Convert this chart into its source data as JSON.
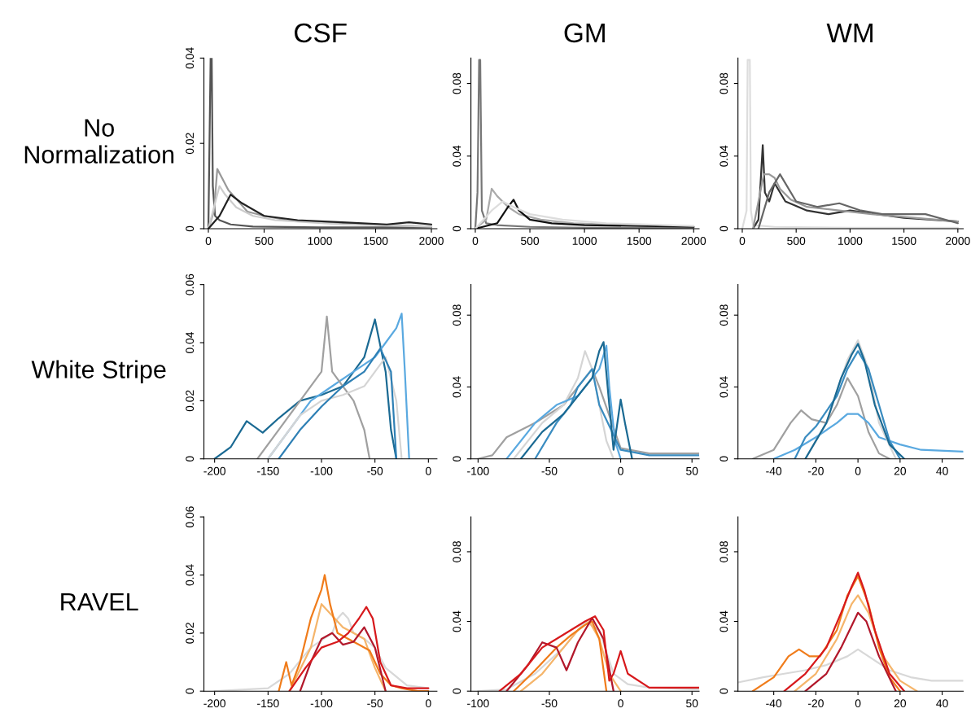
{
  "chart_data": [
    {
      "type": "line",
      "title": "CSF",
      "ylabel": "No\nNormalization",
      "xlim": [
        -40,
        2050
      ],
      "xticks": [
        0,
        500,
        1000,
        1500,
        2000
      ],
      "ylim": [
        0,
        0.04
      ],
      "yticks": [
        0,
        0.02,
        0.04
      ],
      "series": [
        {
          "color": "#555555",
          "x": [
            0,
            10,
            20,
            30,
            40,
            60,
            100,
            200,
            400,
            1000,
            2000
          ],
          "values": [
            0,
            0.02,
            0.04,
            0.04,
            0.01,
            0.003,
            0.002,
            0.001,
            0.0005,
            0.0003,
            0.0003
          ]
        },
        {
          "color": "#999999",
          "x": [
            0,
            50,
            80,
            120,
            180,
            250,
            350,
            500,
            700,
            1000,
            1500,
            2000
          ],
          "values": [
            0,
            0.004,
            0.014,
            0.012,
            0.009,
            0.007,
            0.004,
            0.003,
            0.002,
            0.0015,
            0.001,
            0.0005
          ]
        },
        {
          "color": "#cccccc",
          "x": [
            0,
            60,
            100,
            150,
            250,
            400,
            600,
            900,
            1200,
            2000
          ],
          "values": [
            0,
            0.006,
            0.01,
            0.008,
            0.005,
            0.003,
            0.002,
            0.0015,
            0.001,
            0.0005
          ]
        },
        {
          "color": "#222222",
          "x": [
            0,
            100,
            200,
            300,
            500,
            800,
            1200,
            1600,
            1800,
            2000
          ],
          "values": [
            0,
            0.003,
            0.008,
            0.006,
            0.003,
            0.002,
            0.0015,
            0.001,
            0.0015,
            0.001
          ]
        }
      ]
    },
    {
      "type": "line",
      "title": "GM",
      "xlim": [
        -40,
        2050
      ],
      "xticks": [
        0,
        500,
        1000,
        1500,
        2000
      ],
      "ylim": [
        0,
        0.094
      ],
      "yticks": [
        0,
        0.04,
        0.08
      ],
      "series": [
        {
          "color": "#777777",
          "x": [
            0,
            20,
            35,
            45,
            60,
            100,
            200,
            500,
            1000,
            2000
          ],
          "values": [
            0,
            0.02,
            0.093,
            0.093,
            0.01,
            0.003,
            0.002,
            0.001,
            0.0005,
            0.0005
          ]
        },
        {
          "color": "#aaaaaa",
          "x": [
            0,
            100,
            150,
            200,
            300,
            400,
            600,
            900,
            1400,
            2000
          ],
          "values": [
            0,
            0.005,
            0.022,
            0.018,
            0.012,
            0.008,
            0.005,
            0.003,
            0.002,
            0.001
          ]
        },
        {
          "color": "#111111",
          "x": [
            0,
            200,
            300,
            350,
            400,
            500,
            700,
            1000,
            2000
          ],
          "values": [
            0,
            0.003,
            0.012,
            0.016,
            0.01,
            0.005,
            0.003,
            0.002,
            0.001
          ]
        },
        {
          "color": "#dddddd",
          "x": [
            0,
            150,
            250,
            350,
            500,
            800,
            1200,
            2000
          ],
          "values": [
            0,
            0.01,
            0.015,
            0.012,
            0.008,
            0.005,
            0.003,
            0.0015
          ]
        }
      ]
    },
    {
      "type": "line",
      "title": "WM",
      "xlim": [
        -40,
        2050
      ],
      "xticks": [
        0,
        500,
        1000,
        1500,
        2000
      ],
      "ylim": [
        0,
        0.094
      ],
      "yticks": [
        0,
        0.04,
        0.08
      ],
      "series": [
        {
          "color": "#dddddd",
          "x": [
            0,
            40,
            50,
            70,
            80,
            100,
            300,
            1000,
            2000
          ],
          "values": [
            0,
            0.01,
            0.093,
            0.093,
            0.01,
            0.002,
            0.001,
            0.0005,
            0.0005
          ]
        },
        {
          "color": "#333333",
          "x": [
            100,
            150,
            190,
            210,
            250,
            300,
            400,
            600,
            800,
            1000,
            1500,
            2000
          ],
          "values": [
            0,
            0.005,
            0.046,
            0.02,
            0.015,
            0.025,
            0.015,
            0.01,
            0.008,
            0.01,
            0.006,
            0.004
          ]
        },
        {
          "color": "#999999",
          "x": [
            100,
            200,
            250,
            300,
            350,
            450,
            600,
            900,
            1200,
            1600,
            2000
          ],
          "values": [
            0,
            0.03,
            0.03,
            0.028,
            0.022,
            0.016,
            0.012,
            0.01,
            0.008,
            0.006,
            0.004
          ]
        },
        {
          "color": "#666666",
          "x": [
            150,
            250,
            350,
            500,
            700,
            900,
            1100,
            1300,
            1700,
            2000
          ],
          "values": [
            0,
            0.02,
            0.03,
            0.015,
            0.012,
            0.014,
            0.01,
            0.008,
            0.008,
            0.003
          ]
        }
      ]
    },
    {
      "type": "line",
      "ylabel": "White Stripe",
      "xlim": [
        -210,
        8
      ],
      "xticks": [
        -200,
        -150,
        -100,
        -50,
        0
      ],
      "ylim": [
        0,
        0.06
      ],
      "yticks": [
        0,
        0.02,
        0.04,
        0.06
      ],
      "series": [
        {
          "color": "#1b6a93",
          "x": [
            -200,
            -185,
            -170,
            -155,
            -140,
            -120,
            -100,
            -80,
            -60,
            -50,
            -40,
            -35,
            -30
          ],
          "values": [
            0,
            0.004,
            0.013,
            0.009,
            0.014,
            0.02,
            0.022,
            0.025,
            0.035,
            0.048,
            0.03,
            0.01,
            0
          ]
        },
        {
          "color": "#5aa9e0",
          "x": [
            -150,
            -130,
            -110,
            -90,
            -70,
            -50,
            -40,
            -30,
            -25,
            -22,
            -18
          ],
          "values": [
            0,
            0.01,
            0.02,
            0.025,
            0.03,
            0.035,
            0.04,
            0.045,
            0.05,
            0.03,
            0
          ]
        },
        {
          "color": "#a0a0a0",
          "x": [
            -160,
            -140,
            -120,
            -100,
            -95,
            -90,
            -80,
            -70,
            -60,
            -55
          ],
          "values": [
            0,
            0.01,
            0.02,
            0.03,
            0.049,
            0.03,
            0.025,
            0.02,
            0.01,
            0
          ]
        },
        {
          "color": "#d5d5d5",
          "x": [
            -150,
            -120,
            -100,
            -80,
            -60,
            -40,
            -30,
            -25
          ],
          "values": [
            0,
            0.015,
            0.02,
            0.022,
            0.025,
            0.035,
            0.02,
            0
          ]
        },
        {
          "color": "#2f80b5",
          "x": [
            -140,
            -120,
            -100,
            -80,
            -60,
            -45,
            -35,
            -30
          ],
          "values": [
            0,
            0.01,
            0.018,
            0.025,
            0.03,
            0.038,
            0.03,
            0
          ]
        }
      ]
    },
    {
      "type": "line",
      "xlim": [
        -105,
        55
      ],
      "xticks": [
        -100,
        -50,
        0,
        50
      ],
      "ylim": [
        0,
        0.097
      ],
      "yticks": [
        0,
        0.04,
        0.08
      ],
      "series": [
        {
          "color": "#a0a0a0",
          "x": [
            -100,
            -90,
            -80,
            -60,
            -40,
            -25,
            -20,
            -15,
            0,
            20,
            55
          ],
          "values": [
            0,
            0.002,
            0.012,
            0.02,
            0.03,
            0.045,
            0.05,
            0.04,
            0.006,
            0.003,
            0.003
          ]
        },
        {
          "color": "#d5d5d5",
          "x": [
            -75,
            -55,
            -40,
            -30,
            -25,
            -20,
            -15,
            -10,
            -5
          ],
          "values": [
            0,
            0.02,
            0.03,
            0.045,
            0.06,
            0.05,
            0.03,
            0.01,
            0
          ]
        },
        {
          "color": "#5aa9e0",
          "x": [
            -80,
            -60,
            -45,
            -30,
            -20,
            -15,
            -10,
            -8,
            -4,
            0
          ],
          "values": [
            0,
            0.02,
            0.03,
            0.035,
            0.045,
            0.05,
            0.063,
            0.04,
            0.01,
            0
          ]
        },
        {
          "color": "#3a8cc0",
          "x": [
            -60,
            -45,
            -35,
            -30,
            -20,
            -15,
            0,
            20,
            55
          ],
          "values": [
            0,
            0.02,
            0.03,
            0.04,
            0.05,
            0.03,
            0.005,
            0.002,
            0.002
          ]
        },
        {
          "color": "#1b6a93",
          "x": [
            -70,
            -55,
            -40,
            -30,
            -20,
            -15,
            -12,
            -8,
            -5,
            0,
            3,
            8
          ],
          "values": [
            0,
            0.015,
            0.025,
            0.035,
            0.045,
            0.06,
            0.065,
            0.03,
            0.005,
            0.033,
            0.02,
            0
          ]
        }
      ]
    },
    {
      "type": "line",
      "xlim": [
        -57,
        50
      ],
      "xticks": [
        -40,
        -20,
        0,
        20,
        40
      ],
      "ylim": [
        0,
        0.097
      ],
      "yticks": [
        0,
        0.04,
        0.08
      ],
      "series": [
        {
          "color": "#a0a0a0",
          "x": [
            -50,
            -40,
            -32,
            -27,
            -22,
            -15,
            -10,
            -5,
            0,
            5,
            10,
            15
          ],
          "values": [
            0,
            0.005,
            0.02,
            0.027,
            0.022,
            0.02,
            0.03,
            0.045,
            0.035,
            0.015,
            0.003,
            0
          ]
        },
        {
          "color": "#5aa9e0",
          "x": [
            -40,
            -30,
            -20,
            -10,
            -5,
            0,
            5,
            10,
            20,
            30,
            50
          ],
          "values": [
            0,
            0.005,
            0.012,
            0.02,
            0.025,
            0.025,
            0.02,
            0.012,
            0.008,
            0.005,
            0.004
          ]
        },
        {
          "color": "#d5d5d5",
          "x": [
            -25,
            -15,
            -5,
            0,
            5,
            10,
            18
          ],
          "values": [
            0,
            0.02,
            0.055,
            0.066,
            0.05,
            0.02,
            0
          ]
        },
        {
          "color": "#3a8cc0",
          "x": [
            -30,
            -25,
            -20,
            -10,
            -5,
            0,
            5,
            10,
            15,
            20
          ],
          "values": [
            0,
            0.012,
            0.018,
            0.035,
            0.05,
            0.06,
            0.05,
            0.03,
            0.01,
            0
          ]
        },
        {
          "color": "#1b6a93",
          "x": [
            -25,
            -15,
            -8,
            -3,
            0,
            3,
            8,
            15,
            22
          ],
          "values": [
            0,
            0.02,
            0.045,
            0.058,
            0.064,
            0.055,
            0.03,
            0.008,
            0
          ]
        }
      ]
    },
    {
      "type": "line",
      "ylabel": "RAVEL",
      "xlim": [
        -210,
        8
      ],
      "xticks": [
        -200,
        -150,
        -100,
        -50,
        0
      ],
      "ylim": [
        0,
        0.06
      ],
      "yticks": [
        0,
        0.02,
        0.04,
        0.06
      ],
      "series": [
        {
          "color": "#d8d8d8",
          "x": [
            -200,
            -150,
            -130,
            -110,
            -90,
            -85,
            -80,
            -75,
            -70,
            -60,
            -50,
            -40,
            -20,
            0
          ],
          "values": [
            0,
            0.001,
            0.006,
            0.015,
            0.02,
            0.025,
            0.027,
            0.025,
            0.02,
            0.018,
            0.015,
            0.008,
            0.002,
            0.001
          ]
        },
        {
          "color": "#f5b56b",
          "x": [
            -130,
            -110,
            -100,
            -90,
            -80,
            -70,
            -60,
            -50,
            -40
          ],
          "values": [
            0,
            0.015,
            0.03,
            0.026,
            0.022,
            0.02,
            0.018,
            0.008,
            0
          ]
        },
        {
          "color": "#f07c1b",
          "x": [
            -140,
            -133,
            -128,
            -120,
            -110,
            -100,
            -97,
            -92,
            -85,
            -75,
            -65,
            -55,
            -45,
            -35,
            -25,
            -10,
            0
          ],
          "values": [
            0,
            0.01,
            0.002,
            0.01,
            0.025,
            0.035,
            0.04,
            0.03,
            0.02,
            0.018,
            0.016,
            0.014,
            0.006,
            0.002,
            0.001,
            0,
            0
          ]
        },
        {
          "color": "#b2182b",
          "x": [
            -120,
            -110,
            -100,
            -90,
            -80,
            -70,
            -60,
            -50,
            -40
          ],
          "values": [
            0,
            0.01,
            0.018,
            0.02,
            0.016,
            0.017,
            0.022,
            0.015,
            0
          ]
        },
        {
          "color": "#d7191c",
          "x": [
            -130,
            -115,
            -100,
            -85,
            -75,
            -65,
            -58,
            -52,
            -45,
            -35,
            -20,
            0
          ],
          "values": [
            0,
            0.008,
            0.015,
            0.017,
            0.02,
            0.025,
            0.029,
            0.025,
            0.01,
            0.002,
            0.001,
            0.001
          ]
        }
      ]
    },
    {
      "type": "line",
      "xlim": [
        -105,
        55
      ],
      "xticks": [
        -100,
        -50,
        0,
        50
      ],
      "ylim": [
        0,
        0.1
      ],
      "yticks": [
        0,
        0.04,
        0.08
      ],
      "series": [
        {
          "color": "#d8d8d8",
          "x": [
            -100,
            -80,
            -60,
            -40,
            -25,
            -15,
            -5,
            5,
            20,
            55
          ],
          "values": [
            0,
            0.001,
            0.01,
            0.025,
            0.04,
            0.035,
            0.01,
            0.004,
            0.002,
            0.001
          ]
        },
        {
          "color": "#f5b56b",
          "x": [
            -70,
            -55,
            -40,
            -30,
            -22,
            -15,
            -8,
            0
          ],
          "values": [
            0,
            0.01,
            0.025,
            0.035,
            0.04,
            0.03,
            0.01,
            0
          ]
        },
        {
          "color": "#f07c1b",
          "x": [
            -75,
            -60,
            -45,
            -35,
            -25,
            -20,
            -15,
            -10
          ],
          "values": [
            0,
            0.012,
            0.025,
            0.032,
            0.038,
            0.04,
            0.03,
            0
          ]
        },
        {
          "color": "#b2182b",
          "x": [
            -80,
            -65,
            -55,
            -45,
            -38,
            -30,
            -20,
            -12,
            -5
          ],
          "values": [
            0,
            0.015,
            0.028,
            0.025,
            0.012,
            0.028,
            0.042,
            0.03,
            0
          ]
        },
        {
          "color": "#d7191c",
          "x": [
            -85,
            -70,
            -55,
            -45,
            -35,
            -25,
            -18,
            -12,
            -8,
            -5,
            0,
            5,
            20,
            55
          ],
          "values": [
            0,
            0.01,
            0.025,
            0.03,
            0.035,
            0.04,
            0.043,
            0.035,
            0.006,
            0.01,
            0.023,
            0.01,
            0.002,
            0.002
          ]
        }
      ]
    },
    {
      "type": "line",
      "xlim": [
        -57,
        50
      ],
      "xticks": [
        -40,
        -20,
        0,
        20,
        40
      ],
      "ylim": [
        0,
        0.1
      ],
      "yticks": [
        0,
        0.04,
        0.08
      ],
      "series": [
        {
          "color": "#d8d8d8",
          "x": [
            -57,
            -45,
            -35,
            -25,
            -15,
            -5,
            0,
            5,
            15,
            25,
            35,
            50
          ],
          "values": [
            0.005,
            0.008,
            0.01,
            0.012,
            0.015,
            0.02,
            0.024,
            0.02,
            0.012,
            0.008,
            0.006,
            0.006
          ]
        },
        {
          "color": "#f5b56b",
          "x": [
            -30,
            -20,
            -10,
            -3,
            0,
            5,
            12,
            20,
            28
          ],
          "values": [
            0,
            0.01,
            0.03,
            0.05,
            0.055,
            0.045,
            0.02,
            0.006,
            0
          ]
        },
        {
          "color": "#f07c1b",
          "x": [
            -50,
            -40,
            -33,
            -28,
            -23,
            -18,
            -10,
            -5,
            0,
            5,
            10,
            15,
            20
          ],
          "values": [
            0,
            0.008,
            0.02,
            0.024,
            0.02,
            0.02,
            0.035,
            0.055,
            0.066,
            0.05,
            0.025,
            0.008,
            0
          ]
        },
        {
          "color": "#b2182b",
          "x": [
            -25,
            -15,
            -8,
            -2,
            0,
            4,
            10,
            18
          ],
          "values": [
            0,
            0.01,
            0.025,
            0.04,
            0.045,
            0.04,
            0.02,
            0
          ]
        },
        {
          "color": "#d7191c",
          "x": [
            -35,
            -25,
            -15,
            -8,
            -3,
            0,
            3,
            8,
            15,
            22
          ],
          "values": [
            0,
            0.01,
            0.025,
            0.045,
            0.06,
            0.068,
            0.058,
            0.035,
            0.01,
            0
          ]
        }
      ]
    }
  ]
}
